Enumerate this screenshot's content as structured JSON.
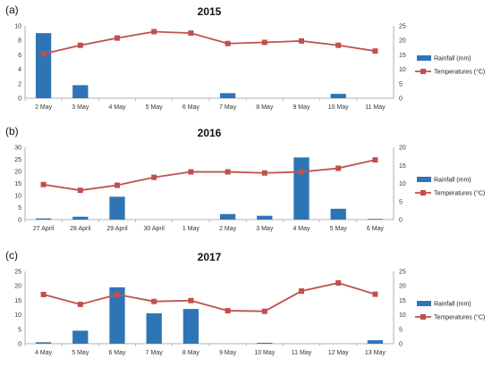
{
  "chart_data": [
    {
      "type": "bar+line",
      "panel_label": "(a)",
      "title": "2015",
      "categories": [
        "2 May",
        "3 May",
        "4 May",
        "5 May",
        "6 May",
        "7 May",
        "8 May",
        "9 May",
        "10 May",
        "11 May"
      ],
      "series": [
        {
          "name": "Rainfall (mm)",
          "type": "bar",
          "axis": "left",
          "values": [
            9.0,
            1.8,
            0,
            0,
            0,
            0.7,
            0,
            0,
            0.6,
            0
          ]
        },
        {
          "name": "Temperatures (°C)",
          "type": "line",
          "axis": "right",
          "values": [
            15.3,
            18.3,
            20.8,
            23.0,
            22.5,
            18.9,
            19.3,
            19.8,
            18.3,
            16.3
          ]
        }
      ],
      "ylim_left": [
        0,
        10
      ],
      "yticks_left": [
        0,
        2,
        4,
        6,
        8,
        10
      ],
      "ylim_right": [
        0,
        25
      ],
      "yticks_right": [
        0,
        5,
        10,
        15,
        20,
        25
      ],
      "legend_position": "right",
      "colors": {
        "bar": "#2e75b6",
        "line": "#c0504d"
      }
    },
    {
      "type": "bar+line",
      "panel_label": "(b)",
      "title": "2016",
      "categories": [
        "27 April",
        "28 April",
        "29 April",
        "30 April",
        "1 May",
        "2 May",
        "3 May",
        "4 May",
        "5 May",
        "6 May"
      ],
      "series": [
        {
          "name": "Rainfall (mm)",
          "type": "bar",
          "axis": "left",
          "values": [
            0.5,
            1.2,
            9.5,
            0,
            0,
            2.3,
            1.6,
            25.8,
            4.5,
            0.3
          ]
        },
        {
          "name": "Temperatures (°C)",
          "type": "line",
          "axis": "right",
          "values": [
            9.7,
            8.1,
            9.5,
            11.7,
            13.2,
            13.2,
            12.9,
            13.2,
            14.2,
            16.5
          ]
        }
      ],
      "ylim_left": [
        0,
        30
      ],
      "yticks_left": [
        0,
        5,
        10,
        15,
        20,
        25,
        30
      ],
      "ylim_right": [
        0,
        20
      ],
      "yticks_right": [
        0,
        5,
        10,
        15,
        20
      ],
      "legend_position": "right",
      "colors": {
        "bar": "#2e75b6",
        "line": "#c0504d"
      }
    },
    {
      "type": "bar+line",
      "panel_label": "(c)",
      "title": "2017",
      "categories": [
        "4 May",
        "5 May",
        "6 May",
        "7 May",
        "8 May",
        "9 May",
        "10 May",
        "11 May",
        "12 May",
        "13 May"
      ],
      "series": [
        {
          "name": "Rainfall (mm)",
          "type": "bar",
          "axis": "left",
          "values": [
            0.5,
            4.5,
            19.5,
            10.5,
            12.0,
            0,
            0.3,
            0,
            0,
            1.2
          ]
        },
        {
          "name": "Temperatures (°C)",
          "type": "line",
          "axis": "right",
          "values": [
            17.0,
            13.6,
            17.0,
            14.6,
            14.9,
            11.4,
            11.2,
            18.2,
            21.0,
            17.1
          ]
        }
      ],
      "ylim_left": [
        0,
        25
      ],
      "yticks_left": [
        0,
        5,
        10,
        15,
        20,
        25
      ],
      "ylim_right": [
        0,
        25
      ],
      "yticks_right": [
        0,
        5,
        10,
        15,
        20,
        25
      ],
      "legend_position": "right",
      "colors": {
        "bar": "#2e75b6",
        "line": "#c0504d"
      }
    }
  ]
}
